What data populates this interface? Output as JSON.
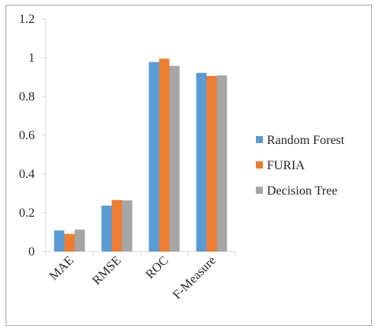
{
  "chart_data": {
    "type": "bar",
    "categories": [
      "MAE",
      "RMSE",
      "ROC",
      "F-Measure"
    ],
    "series": [
      {
        "name": "Random Forest",
        "color": "#5b9bd5",
        "values": [
          0.109,
          0.237,
          0.978,
          0.922
        ]
      },
      {
        "name": "FURIA",
        "color": "#ed7d31",
        "values": [
          0.091,
          0.266,
          0.995,
          0.906
        ]
      },
      {
        "name": "Decision Tree",
        "color": "#a5a5a5",
        "values": [
          0.113,
          0.264,
          0.958,
          0.909
        ]
      }
    ],
    "ylim": [
      0,
      1.2
    ],
    "yticks": [
      "0",
      "0.2",
      "0.4",
      "0.6",
      "0.8",
      "1",
      "1.2"
    ],
    "grid": false,
    "legend_position": "right"
  }
}
